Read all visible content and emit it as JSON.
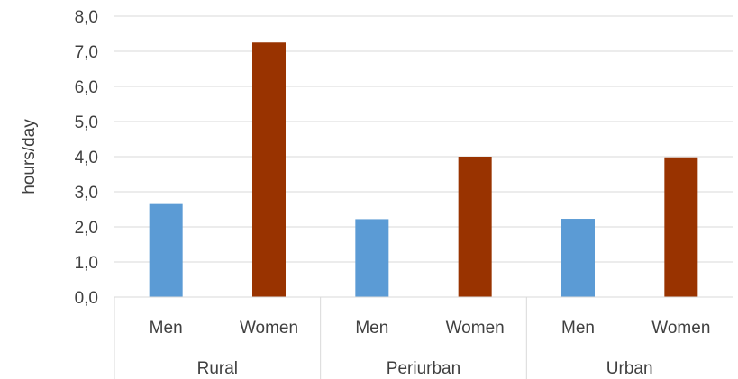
{
  "chart_data": {
    "type": "bar",
    "ylabel": "hours/day",
    "ylim": [
      0,
      8
    ],
    "ytick_step": 1,
    "ytick_labels": [
      "0,0",
      "1,0",
      "2,0",
      "3,0",
      "4,0",
      "5,0",
      "6,0",
      "7,0",
      "8,0"
    ],
    "grid": true,
    "groups": [
      {
        "label": "Rural",
        "bars": [
          {
            "label": "Men",
            "value": 2.65,
            "color": "#5b9bd5"
          },
          {
            "label": "Women",
            "value": 7.25,
            "color": "#993300"
          }
        ]
      },
      {
        "label": "Periurban",
        "bars": [
          {
            "label": "Men",
            "value": 2.22,
            "color": "#5b9bd5"
          },
          {
            "label": "Women",
            "value": 4.0,
            "color": "#993300"
          }
        ]
      },
      {
        "label": "Urban",
        "bars": [
          {
            "label": "Men",
            "value": 2.23,
            "color": "#5b9bd5"
          },
          {
            "label": "Women",
            "value": 3.98,
            "color": "#993300"
          }
        ]
      }
    ]
  }
}
